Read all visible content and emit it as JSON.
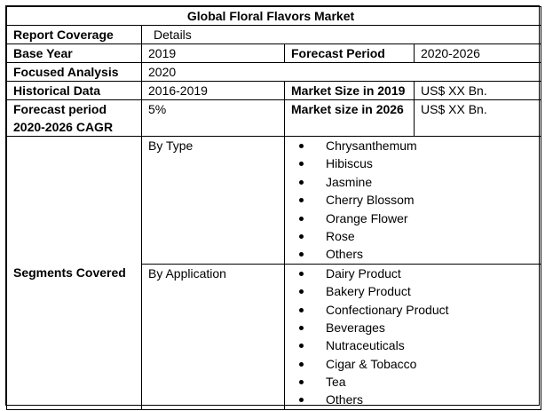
{
  "title": "Global Floral Flavors Market",
  "rows": {
    "report_coverage": {
      "label": "Report Coverage",
      "value": "Details"
    },
    "base_year": {
      "label": "Base Year",
      "value": "2019",
      "label2": "Forecast Period",
      "value2": "2020-2026"
    },
    "focused_analysis": {
      "label": "Focused Analysis",
      "value": "2020"
    },
    "historical_data": {
      "label": "Historical Data",
      "value": "2016-2019",
      "label2": "Market Size in 2019",
      "value2": "US$ XX Bn."
    },
    "forecast_cagr": {
      "label": "Forecast period 2020-2026 CAGR",
      "value": "5%",
      "label2": "Market size in 2026",
      "value2": "US$ XX Bn."
    }
  },
  "segments": {
    "label": "Segments Covered",
    "by_type": {
      "label": "By Type",
      "items": [
        "Chrysanthemum",
        "Hibiscus",
        "Jasmine",
        "Cherry Blossom",
        "Orange Flower",
        "Rose",
        "Others"
      ]
    },
    "by_application": {
      "label": "By Application",
      "items": [
        "Dairy Product",
        "Bakery Product",
        "Confectionary Product",
        "Beverages",
        "Nutraceuticals",
        "Cigar & Tobacco",
        "Tea",
        "Others"
      ]
    }
  }
}
